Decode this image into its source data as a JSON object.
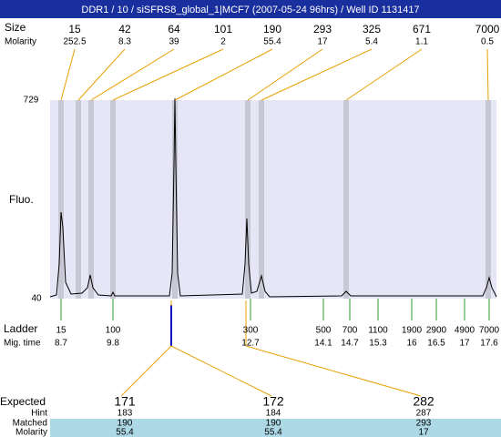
{
  "header": {
    "title": "DDR1 / 10 / siSFRS8_global_1|MCF7 (2007-05-24 96hrs) / Well ID 1131417"
  },
  "peaks": {
    "size_label": "Size",
    "molarity_label": "Molarity",
    "items": [
      {
        "size": "15",
        "molarity": "252.5"
      },
      {
        "size": "42",
        "molarity": "8.3"
      },
      {
        "size": "64",
        "molarity": "39"
      },
      {
        "size": "101",
        "molarity": "2"
      },
      {
        "size": "190",
        "molarity": "55.4"
      },
      {
        "size": "293",
        "molarity": "17"
      },
      {
        "size": "325",
        "molarity": "5.4"
      },
      {
        "size": "671",
        "molarity": "1.1"
      },
      {
        "size": "7000",
        "molarity": "0.5"
      }
    ]
  },
  "plot": {
    "y_top": "729",
    "y_bottom": "40",
    "y_label": "Fluo."
  },
  "ladder": {
    "label": "Ladder",
    "time_label": "Mig. time",
    "items": [
      {
        "size": "15",
        "time": "8.7"
      },
      {
        "size": "100",
        "time": "9.8"
      },
      {
        "size": "300",
        "time": "12.7"
      },
      {
        "size": "500",
        "time": "14.1"
      },
      {
        "size": "700",
        "time": "14.7"
      },
      {
        "size": "1100",
        "time": "15.3"
      },
      {
        "size": "1900",
        "time": "16"
      },
      {
        "size": "2900",
        "time": "16.5"
      },
      {
        "size": "4900",
        "time": "17"
      },
      {
        "size": "7000",
        "time": "17.6"
      }
    ]
  },
  "table": {
    "row_labels": [
      "Expected",
      "Hint",
      "Matched",
      "Molarity"
    ],
    "columns": [
      {
        "expected": "171",
        "color": "#e02020",
        "hint": "183",
        "matched": "190",
        "molarity": "55.4"
      },
      {
        "expected": "172",
        "color": "#000000",
        "hint": "184",
        "matched": "190",
        "molarity": "55.4"
      },
      {
        "expected": "282",
        "color": "#e02020",
        "hint": "287",
        "matched": "293",
        "molarity": "17"
      }
    ]
  }
}
